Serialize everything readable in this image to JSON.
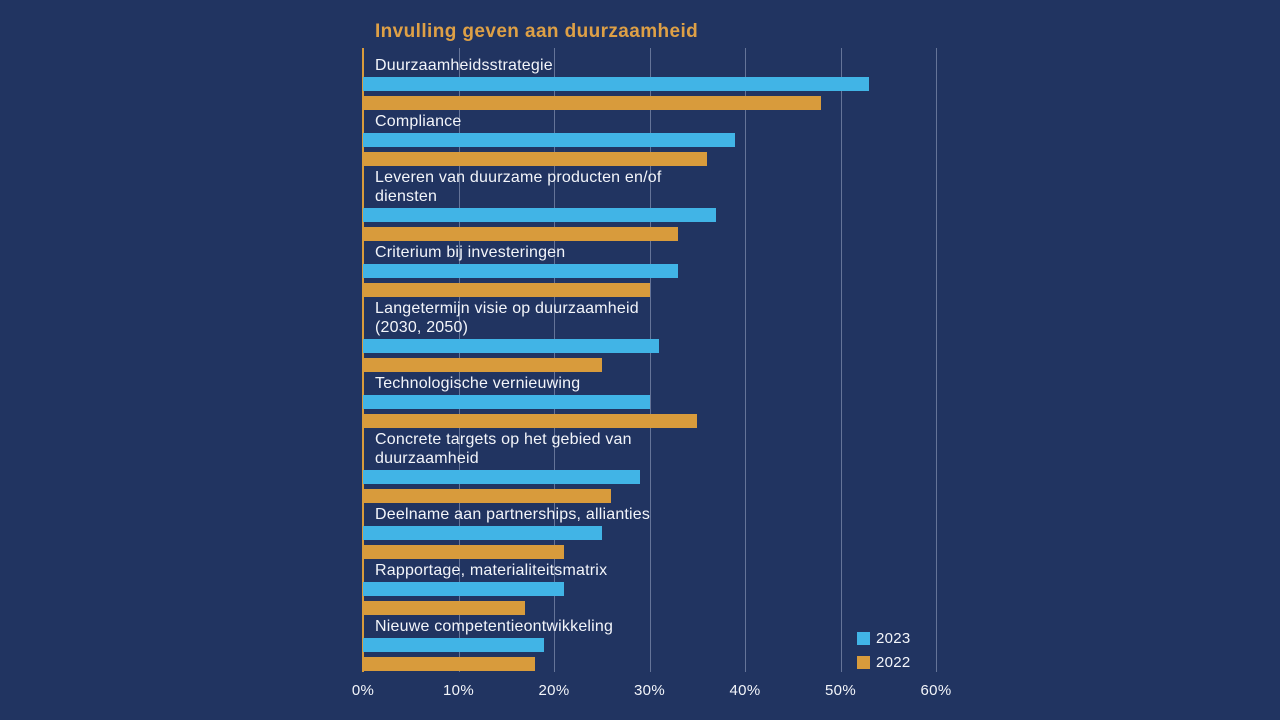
{
  "title": "Invulling geven aan duurzaamheid",
  "colors": {
    "background": "#213461",
    "title": "#dea046",
    "axis_line": "#d89b3c",
    "gridline": "rgba(195,205,228,0.42)",
    "label_text": "#f3f5fa",
    "series_2023": "#41b4e6",
    "series_2022": "#d89b3c"
  },
  "chart_data": {
    "type": "bar",
    "orientation": "horizontal",
    "title": "Invulling geven aan duurzaamheid",
    "categories": [
      "Duurzaamheidsstrategie",
      "Compliance",
      "Leveren van duurzame producten en/of\ndiensten",
      "Criterium bij investeringen",
      "Langetermijn visie op duurzaamheid\n(2030, 2050)",
      "Technologische vernieuwing",
      "Concrete targets op het gebied van\nduurzaamheid",
      "Deelname aan partnerships, allianties",
      "Rapportage, materialiteitsmatrix",
      "Nieuwe competentieontwikkeling"
    ],
    "series": [
      {
        "name": "2023",
        "color": "#41b4e6",
        "values": [
          53,
          39,
          37,
          33,
          31,
          30,
          29,
          25,
          21,
          19
        ]
      },
      {
        "name": "2022",
        "color": "#d89b3c",
        "values": [
          48,
          36,
          33,
          30,
          25,
          35,
          26,
          21,
          17,
          18
        ]
      }
    ],
    "x_ticks": [
      "0%",
      "10%",
      "20%",
      "30%",
      "40%",
      "50%",
      "60%"
    ],
    "xlim": [
      0,
      60
    ],
    "xlabel": "",
    "ylabel": "",
    "grid": true,
    "legend_position": "bottom-right"
  },
  "legend": {
    "items": [
      {
        "label": "2023",
        "color": "#41b4e6"
      },
      {
        "label": "2022",
        "color": "#d89b3c"
      }
    ]
  }
}
